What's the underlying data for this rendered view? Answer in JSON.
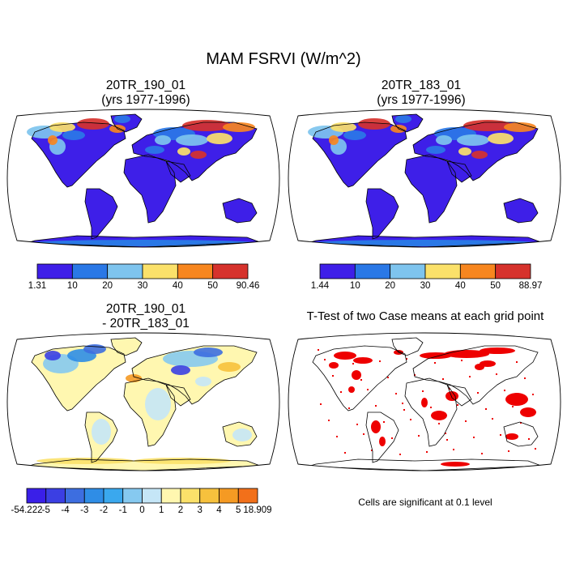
{
  "figure_title": "MAM FSRVI (W/m^2)",
  "colors": {
    "scale": [
      "#3e1fe8",
      "#2a78e6",
      "#7ec4ee",
      "#fbe16a",
      "#f7861f",
      "#d6322c"
    ],
    "diff": [
      "#3a1fe8",
      "#3b3fe3",
      "#3d6ee0",
      "#2f8de6",
      "#3aa8ee",
      "#86c9f0",
      "#c5e6f7",
      "#fff7b0",
      "#fbe16a",
      "#f7c13d",
      "#f59a23",
      "#f2701a",
      "#ee3b1b",
      "#dc1010",
      "#c81d1d"
    ],
    "land_outline": "#000000",
    "ocean": "#ffffff",
    "signif": "#ee0000"
  },
  "panels": [
    {
      "title_line1": "20TR_190_01",
      "title_line2": "(yrs 1977-1996)"
    },
    {
      "title_line1": "20TR_183_01",
      "title_line2": "(yrs 1977-1996)"
    },
    {
      "title_line1": "20TR_190_01",
      "title_line2": "- 20TR_183_01"
    },
    {
      "title_line1": "T-Test of two Case means at each grid point"
    }
  ],
  "note": "Cells are significant at 0.1 level",
  "chart_data": [
    {
      "type": "heatmap",
      "title": "20TR_190_01 (yrs 1977-1996)",
      "projection": "Robinson",
      "colorbar_labels": [
        "1.31",
        "10",
        "20",
        "30",
        "40",
        "50",
        "90.46"
      ],
      "levels": [
        1.31,
        10,
        20,
        30,
        40,
        50,
        90.46
      ]
    },
    {
      "type": "heatmap",
      "title": "20TR_183_01 (yrs 1977-1996)",
      "projection": "Robinson",
      "colorbar_labels": [
        "1.44",
        "10",
        "20",
        "30",
        "40",
        "50",
        "88.97"
      ],
      "levels": [
        1.44,
        10,
        20,
        30,
        40,
        50,
        88.97
      ]
    },
    {
      "type": "heatmap",
      "title": "20TR_190_01 - 20TR_183_01",
      "projection": "Robinson",
      "colorbar_labels": [
        "-54.222",
        "-5",
        "-4",
        "-3",
        "-2",
        "-1",
        "0",
        "1",
        "2",
        "3",
        "4",
        "5",
        "18.909"
      ],
      "levels": [
        -54.222,
        -5,
        -4,
        -3,
        -2,
        -1,
        0,
        1,
        2,
        3,
        4,
        5,
        18.909
      ]
    },
    {
      "type": "heatmap",
      "title": "T-Test of two Case means at each grid point",
      "projection": "Robinson",
      "significance_level": 0.1
    }
  ]
}
